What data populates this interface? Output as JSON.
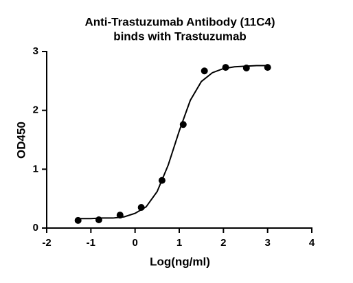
{
  "chart_data": {
    "type": "scatter",
    "title": [
      "Anti-Trastuzumab Antibody (11C4)",
      "binds with Trastuzumab"
    ],
    "x_label": "Log(ng/ml)",
    "y_label": "OD450",
    "xlim": [
      -2,
      4
    ],
    "xticks": [
      -2,
      -1,
      0,
      1,
      2,
      3,
      4
    ],
    "ylim": [
      0,
      3
    ],
    "yticks": [
      0,
      1,
      2,
      3
    ],
    "color": "#000000",
    "x": [
      -1.29,
      -0.82,
      -0.34,
      0.14,
      0.61,
      1.09,
      1.57,
      2.05,
      2.52,
      3.0
    ],
    "values": [
      0.13,
      0.14,
      0.22,
      0.35,
      0.81,
      1.76,
      2.67,
      2.73,
      2.72,
      2.73
    ],
    "fit": {
      "x": [
        -1.3,
        -1,
        -0.75,
        -0.5,
        -0.25,
        0,
        0.25,
        0.5,
        0.75,
        1,
        1.25,
        1.5,
        1.75,
        2,
        2.25,
        2.5,
        2.75,
        3
      ],
      "values": [
        0.16,
        0.16,
        0.17,
        0.17,
        0.19,
        0.25,
        0.36,
        0.62,
        1.07,
        1.65,
        2.17,
        2.49,
        2.64,
        2.71,
        2.74,
        2.75,
        2.76,
        2.76
      ]
    }
  }
}
